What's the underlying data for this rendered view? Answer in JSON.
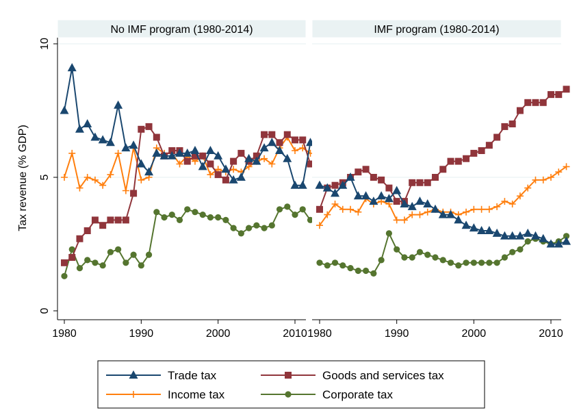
{
  "chart_data": {
    "type": "line",
    "ylabel": "Tax revenue (% GDP)",
    "ylim": [
      0,
      10
    ],
    "yticks": [
      0,
      5,
      10
    ],
    "xlim": [
      1979.5,
      2013.5
    ],
    "xticks": [
      1980,
      1990,
      2000,
      2010
    ],
    "grid": "horizontal",
    "legend_position": "bottom",
    "series_styles": [
      {
        "key": "trade",
        "name": "Trade tax",
        "color": "#1a476f",
        "marker": "triangle"
      },
      {
        "key": "goods",
        "name": "Goods and services tax",
        "color": "#90353b",
        "marker": "square"
      },
      {
        "key": "income",
        "name": "Income tax",
        "color": "#ff7f0e",
        "marker": "plus"
      },
      {
        "key": "corporate",
        "name": "Corporate tax",
        "color": "#55752f",
        "marker": "circle"
      }
    ],
    "panels": [
      {
        "title": "No IMF program (1980-2014)",
        "x_start": 1980,
        "series": {
          "trade": [
            7.5,
            9.1,
            6.8,
            7.0,
            6.5,
            6.4,
            6.3,
            7.7,
            6.1,
            6.2,
            5.5,
            5.2,
            5.9,
            5.8,
            5.8,
            5.9,
            5.9,
            6.0,
            5.4,
            6.0,
            5.8,
            5.3,
            4.9,
            5.0,
            5.7,
            5.6,
            6.1,
            6.3,
            6.0,
            5.7,
            4.7,
            4.7,
            6.3
          ],
          "goods": [
            1.8,
            2.0,
            2.7,
            3.0,
            3.4,
            3.2,
            3.4,
            3.4,
            3.4,
            4.4,
            6.8,
            6.9,
            6.5,
            5.8,
            6.0,
            6.0,
            5.6,
            5.8,
            5.8,
            5.5,
            5.1,
            4.9,
            5.6,
            5.9,
            5.6,
            5.8,
            6.6,
            6.6,
            6.3,
            6.6,
            6.4,
            6.4,
            5.5
          ],
          "income": [
            5.0,
            5.9,
            4.6,
            5.0,
            4.9,
            4.7,
            5.1,
            5.9,
            4.5,
            6.1,
            4.9,
            5.0,
            6.1,
            5.9,
            5.9,
            5.5,
            5.8,
            5.6,
            5.8,
            5.1,
            5.3,
            5.2,
            5.3,
            5.2,
            5.4,
            5.6,
            5.7,
            5.5,
            6.1,
            6.5,
            6.0,
            6.1,
            5.9
          ],
          "corporate": [
            1.3,
            2.3,
            1.6,
            1.9,
            1.8,
            1.7,
            2.2,
            2.3,
            1.8,
            2.1,
            1.7,
            2.1,
            3.7,
            3.5,
            3.6,
            3.4,
            3.8,
            3.7,
            3.6,
            3.5,
            3.5,
            3.4,
            3.1,
            2.9,
            3.1,
            3.2,
            3.1,
            3.2,
            3.8,
            3.9,
            3.6,
            3.8,
            3.4
          ]
        }
      },
      {
        "title": "IMF program (1980-2014)",
        "x_start": 1980,
        "series": {
          "trade": [
            4.7,
            4.6,
            4.4,
            4.7,
            5.0,
            4.3,
            4.3,
            4.1,
            4.3,
            4.2,
            4.5,
            4.0,
            3.9,
            4.1,
            4.0,
            3.8,
            3.6,
            3.6,
            3.4,
            3.2,
            3.1,
            3.0,
            3.0,
            2.9,
            2.8,
            2.8,
            2.8,
            2.9,
            2.8,
            2.7,
            2.5,
            2.5,
            2.6
          ],
          "goods": [
            3.8,
            4.6,
            4.7,
            4.8,
            5.0,
            5.2,
            5.3,
            5.0,
            4.9,
            4.6,
            4.1,
            4.1,
            4.8,
            4.8,
            4.8,
            5.0,
            5.3,
            5.6,
            5.6,
            5.7,
            5.9,
            6.0,
            6.2,
            6.5,
            6.9,
            7.0,
            7.5,
            7.8,
            7.8,
            7.8,
            8.1,
            8.1,
            8.3
          ],
          "income": [
            3.2,
            3.6,
            4.0,
            3.8,
            3.8,
            3.7,
            4.2,
            4.0,
            4.1,
            4.0,
            3.4,
            3.4,
            3.6,
            3.6,
            3.7,
            3.8,
            3.7,
            3.7,
            3.6,
            3.7,
            3.8,
            3.8,
            3.8,
            3.9,
            4.1,
            4.0,
            4.3,
            4.6,
            4.9,
            4.9,
            5.0,
            5.2,
            5.4
          ],
          "corporate": [
            1.8,
            1.7,
            1.8,
            1.7,
            1.6,
            1.5,
            1.5,
            1.4,
            1.9,
            2.9,
            2.3,
            2.0,
            2.0,
            2.2,
            2.1,
            2.0,
            1.9,
            1.8,
            1.7,
            1.8,
            1.8,
            1.8,
            1.8,
            1.8,
            2.0,
            2.2,
            2.3,
            2.6,
            2.7,
            2.6,
            2.5,
            2.6,
            2.8
          ]
        }
      }
    ]
  }
}
